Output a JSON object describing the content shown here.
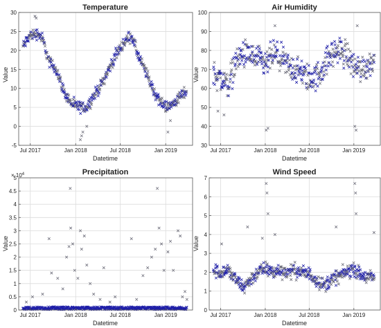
{
  "chart_data": [
    {
      "type": "scatter",
      "title": "Temperature",
      "xlabel": "Datetime",
      "ylabel": "Value",
      "ylim": [
        -5,
        30
      ],
      "yticks": [
        -5,
        0,
        5,
        10,
        15,
        20,
        25,
        30
      ],
      "xlim": [
        "2017-05-15",
        "2019-04-20"
      ],
      "xticks": [
        "2017-07-01",
        "2018-01-01",
        "2018-07-01",
        "2019-01-01"
      ],
      "xtick_labels": [
        "Jul 2017",
        "Jan 2018",
        "Jul 2018",
        "Jan 2019"
      ],
      "grid": true,
      "marker": "x",
      "profile": [
        [
          "2017-06-01",
          21
        ],
        [
          "2017-07-01",
          24
        ],
        [
          "2017-08-01",
          24.5
        ],
        [
          "2017-08-20",
          23
        ],
        [
          "2017-09-15",
          17
        ],
        [
          "2017-10-15",
          15
        ],
        [
          "2017-11-15",
          9
        ],
        [
          "2017-12-15",
          6
        ],
        [
          "2018-01-15",
          5
        ],
        [
          "2018-02-15",
          5
        ],
        [
          "2018-03-15",
          8
        ],
        [
          "2018-04-15",
          11
        ],
        [
          "2018-05-15",
          15
        ],
        [
          "2018-06-15",
          19
        ],
        [
          "2018-07-15",
          22
        ],
        [
          "2018-08-15",
          24
        ],
        [
          "2018-09-15",
          18
        ],
        [
          "2018-10-15",
          14
        ],
        [
          "2018-11-15",
          9
        ],
        [
          "2018-12-15",
          6
        ],
        [
          "2019-01-15",
          5
        ],
        [
          "2019-02-15",
          7
        ],
        [
          "2019-03-20",
          9
        ]
      ],
      "spread": 2.2,
      "outliers": [
        [
          "2017-07-20",
          29
        ],
        [
          "2017-07-25",
          28.5
        ],
        [
          "2018-01-20",
          -3.5
        ],
        [
          "2018-01-25",
          -2.5
        ],
        [
          "2018-01-30",
          -1.5
        ],
        [
          "2019-01-10",
          -1.5
        ],
        [
          "2018-02-15",
          0
        ],
        [
          "2019-01-20",
          1.5
        ]
      ]
    },
    {
      "type": "scatter",
      "title": "Air Humidity",
      "xlabel": "Datetime",
      "ylabel": "Value",
      "ylim": [
        30,
        100
      ],
      "yticks": [
        30,
        40,
        50,
        60,
        70,
        80,
        90,
        100
      ],
      "xlim": [
        "2017-05-15",
        "2019-04-20"
      ],
      "xticks": [
        "2017-07-01",
        "2018-01-01",
        "2018-07-01",
        "2019-01-01"
      ],
      "xtick_labels": [
        "Jul 2017",
        "Jan 2018",
        "Jul 2018",
        "Jan 2019"
      ],
      "grid": true,
      "marker": "x",
      "profile": [
        [
          "2017-06-01",
          68
        ],
        [
          "2017-07-01",
          65
        ],
        [
          "2017-08-01",
          62
        ],
        [
          "2017-09-01",
          74
        ],
        [
          "2017-10-01",
          78
        ],
        [
          "2017-11-01",
          77
        ],
        [
          "2017-12-01",
          75
        ],
        [
          "2018-01-01",
          72
        ],
        [
          "2018-02-01",
          78
        ],
        [
          "2018-03-01",
          76
        ],
        [
          "2018-04-01",
          72
        ],
        [
          "2018-05-01",
          70
        ],
        [
          "2018-06-01",
          68
        ],
        [
          "2018-07-01",
          65
        ],
        [
          "2018-08-01",
          66
        ],
        [
          "2018-09-01",
          72
        ],
        [
          "2018-10-01",
          78
        ],
        [
          "2018-11-01",
          80
        ],
        [
          "2018-12-01",
          78
        ],
        [
          "2019-01-01",
          72
        ],
        [
          "2019-02-01",
          70
        ],
        [
          "2019-03-20",
          74
        ]
      ],
      "spread": 11,
      "outliers": [
        [
          "2017-06-20",
          48
        ],
        [
          "2017-07-15",
          46
        ],
        [
          "2018-01-05",
          38
        ],
        [
          "2018-01-12",
          39
        ],
        [
          "2018-02-10",
          93
        ],
        [
          "2019-01-15",
          93
        ],
        [
          "2019-01-10",
          38
        ],
        [
          "2019-01-05",
          40
        ]
      ]
    },
    {
      "type": "scatter",
      "title": "Precipitation",
      "xlabel": "Datetime",
      "ylabel": "Value",
      "ylim": [
        0,
        5
      ],
      "yticks": [
        0,
        0.5,
        1,
        1.5,
        2,
        2.5,
        3,
        3.5,
        4,
        4.5,
        5
      ],
      "y_exponent": "× 10^4",
      "xlim": [
        "2017-05-15",
        "2019-04-20"
      ],
      "xticks": [
        "2017-07-01",
        "2018-01-01",
        "2018-07-01",
        "2019-01-01"
      ],
      "xtick_labels": [
        "Jul 2017",
        "Jan 2018",
        "Jul 2018",
        "Jan 2019"
      ],
      "grid": true,
      "marker": "x",
      "baseline_points": true,
      "spikes": [
        [
          "2017-06-15",
          0.3
        ],
        [
          "2017-07-10",
          0.5
        ],
        [
          "2017-08-20",
          0.6
        ],
        [
          "2017-09-15",
          2.7
        ],
        [
          "2017-09-25",
          1.4
        ],
        [
          "2017-10-20",
          1.2
        ],
        [
          "2017-11-10",
          0.8
        ],
        [
          "2017-11-25",
          2.0
        ],
        [
          "2017-12-05",
          2.4
        ],
        [
          "2017-12-10",
          4.6
        ],
        [
          "2017-12-12",
          3.1
        ],
        [
          "2017-12-20",
          2.5
        ],
        [
          "2017-12-28",
          1.5
        ],
        [
          "2018-01-10",
          1.2
        ],
        [
          "2018-01-20",
          3.0
        ],
        [
          "2018-01-25",
          2.3
        ],
        [
          "2018-02-05",
          2.8
        ],
        [
          "2018-02-15",
          1.7
        ],
        [
          "2018-03-01",
          1.0
        ],
        [
          "2018-03-15",
          0.6
        ],
        [
          "2018-04-10",
          0.4
        ],
        [
          "2018-04-25",
          1.6
        ],
        [
          "2018-05-20",
          0.3
        ],
        [
          "2018-06-10",
          0.5
        ],
        [
          "2018-08-15",
          2.7
        ],
        [
          "2018-09-05",
          0.4
        ],
        [
          "2018-10-01",
          1.3
        ],
        [
          "2018-10-20",
          1.6
        ],
        [
          "2018-11-05",
          2.0
        ],
        [
          "2018-11-20",
          2.3
        ],
        [
          "2018-11-28",
          4.6
        ],
        [
          "2018-12-05",
          3.1
        ],
        [
          "2018-12-15",
          2.5
        ],
        [
          "2018-12-25",
          1.5
        ],
        [
          "2019-01-10",
          2.2
        ],
        [
          "2019-01-20",
          2.6
        ],
        [
          "2019-02-01",
          1.5
        ],
        [
          "2019-02-20",
          3.0
        ],
        [
          "2019-03-01",
          2.8
        ],
        [
          "2019-03-10",
          0.5
        ],
        [
          "2019-03-20",
          0.7
        ],
        [
          "2019-03-28",
          0.4
        ]
      ]
    },
    {
      "type": "scatter",
      "title": "Wind Speed",
      "xlabel": "Datetime",
      "ylabel": "Value",
      "ylim": [
        0,
        7
      ],
      "yticks": [
        0,
        1,
        2,
        3,
        4,
        5,
        6,
        7
      ],
      "xlim": [
        "2017-05-15",
        "2019-04-20"
      ],
      "xticks": [
        "2017-07-01",
        "2018-01-01",
        "2018-07-01",
        "2019-01-01"
      ],
      "xtick_labels": [
        "Jul 2017",
        "Jan 2018",
        "Jul 2018",
        "Jan 2019"
      ],
      "grid": true,
      "marker": "x",
      "profile": [
        [
          "2017-06-01",
          2.1
        ],
        [
          "2017-07-01",
          2.0
        ],
        [
          "2017-08-01",
          2.1
        ],
        [
          "2017-09-01",
          1.6
        ],
        [
          "2017-10-01",
          1.2
        ],
        [
          "2017-11-01",
          1.6
        ],
        [
          "2017-12-01",
          2.0
        ],
        [
          "2018-01-01",
          2.2
        ],
        [
          "2018-02-01",
          2.0
        ],
        [
          "2018-03-01",
          2.1
        ],
        [
          "2018-04-01",
          2.0
        ],
        [
          "2018-05-01",
          2.1
        ],
        [
          "2018-06-01",
          2.0
        ],
        [
          "2018-07-01",
          1.9
        ],
        [
          "2018-08-01",
          1.6
        ],
        [
          "2018-09-01",
          1.3
        ],
        [
          "2018-10-01",
          1.6
        ],
        [
          "2018-11-01",
          1.8
        ],
        [
          "2018-12-01",
          2.0
        ],
        [
          "2019-01-01",
          2.2
        ],
        [
          "2019-02-01",
          1.8
        ],
        [
          "2019-03-20",
          1.7
        ]
      ],
      "spread": 0.55,
      "outliers": [
        [
          "2018-01-05",
          6.7
        ],
        [
          "2018-01-08",
          6.2
        ],
        [
          "2018-01-12",
          5.1
        ],
        [
          "2019-01-05",
          6.7
        ],
        [
          "2019-01-08",
          6.2
        ],
        [
          "2019-01-10",
          5.1
        ],
        [
          "2017-10-20",
          4.4
        ],
        [
          "2018-10-20",
          4.4
        ],
        [
          "2018-02-10",
          4.0
        ],
        [
          "2019-03-25",
          4.1
        ],
        [
          "2017-07-05",
          3.5
        ],
        [
          "2017-12-20",
          3.8
        ]
      ]
    }
  ],
  "colors": {
    "marker": "#1f1fa8",
    "marker_gray": "#6b6b78",
    "grid": "#dcdcdc",
    "axis": "#555555",
    "text": "#222222"
  }
}
